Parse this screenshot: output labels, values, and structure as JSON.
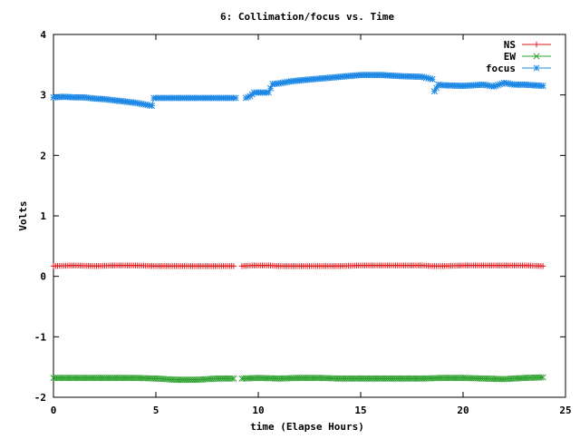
{
  "chart_data": {
    "type": "line",
    "title": "6: Collimation/focus vs. Time",
    "xlabel": "time (Elapse Hours)",
    "ylabel": "Volts",
    "xlim": [
      0,
      25
    ],
    "ylim": [
      -2,
      4
    ],
    "xticks": [
      0,
      5,
      10,
      15,
      20,
      25
    ],
    "xtick_labels": [
      "0",
      "5",
      "10",
      "15",
      "20",
      "25"
    ],
    "yticks": [
      -2,
      -1,
      0,
      1,
      2,
      3,
      4
    ],
    "ytick_labels": [
      "-2",
      "-1",
      "0",
      "1",
      "2",
      "3",
      "4"
    ],
    "grid": false,
    "legend_position": "top-right",
    "series": [
      {
        "name": "NS",
        "color": "#e41a1c",
        "marker": "plus",
        "x": [
          0,
          1,
          2,
          3,
          4,
          5,
          6,
          7,
          8,
          8.8,
          9.2,
          9.8,
          10.5,
          11,
          12,
          13,
          14,
          15,
          16,
          17,
          18,
          18.5,
          19,
          20,
          21,
          22,
          23,
          23.9
        ],
        "y": [
          0.17,
          0.18,
          0.17,
          0.18,
          0.18,
          0.17,
          0.17,
          0.17,
          0.17,
          0.17,
          0.17,
          0.18,
          0.18,
          0.17,
          0.17,
          0.17,
          0.17,
          0.18,
          0.18,
          0.18,
          0.18,
          0.17,
          0.17,
          0.18,
          0.18,
          0.18,
          0.18,
          0.17
        ],
        "gaps_after": [
          8.8
        ]
      },
      {
        "name": "EW",
        "color": "#2ca02c",
        "marker": "cross",
        "x": [
          0,
          1,
          2,
          3,
          4,
          5,
          6,
          7,
          8,
          8.8,
          9.2,
          10,
          11,
          12,
          13,
          14,
          15,
          16,
          17,
          18,
          19,
          20,
          21,
          22,
          23,
          23.9
        ],
        "y": [
          -1.68,
          -1.68,
          -1.68,
          -1.68,
          -1.68,
          -1.69,
          -1.71,
          -1.71,
          -1.69,
          -1.69,
          -1.69,
          -1.68,
          -1.69,
          -1.68,
          -1.68,
          -1.69,
          -1.69,
          -1.69,
          -1.69,
          -1.69,
          -1.68,
          -1.68,
          -1.69,
          -1.7,
          -1.68,
          -1.67
        ],
        "gaps_after": [
          8.8
        ]
      },
      {
        "name": "focus",
        "color": "#1e88e5",
        "marker": "star",
        "x": [
          0,
          0.5,
          1,
          1.5,
          2,
          2.5,
          3,
          3.5,
          4,
          4.5,
          4.8,
          4.9,
          5.5,
          6,
          7,
          8,
          8.9,
          9.4,
          9.6,
          9.8,
          10.5,
          10.7,
          11,
          11.5,
          12,
          13,
          14,
          15,
          16,
          17,
          18,
          18.5,
          18.6,
          18.8,
          19,
          20,
          21,
          21.5,
          22,
          22.5,
          23,
          23.9
        ],
        "y": [
          2.96,
          2.97,
          2.96,
          2.96,
          2.94,
          2.93,
          2.91,
          2.89,
          2.87,
          2.84,
          2.82,
          2.95,
          2.95,
          2.95,
          2.95,
          2.95,
          2.95,
          2.95,
          2.98,
          3.04,
          3.04,
          3.18,
          3.19,
          3.22,
          3.24,
          3.27,
          3.3,
          3.33,
          3.33,
          3.31,
          3.3,
          3.26,
          3.06,
          3.17,
          3.16,
          3.15,
          3.17,
          3.14,
          3.2,
          3.17,
          3.17,
          3.15
        ],
        "gaps_after": [
          8.9,
          18.5
        ]
      }
    ]
  }
}
